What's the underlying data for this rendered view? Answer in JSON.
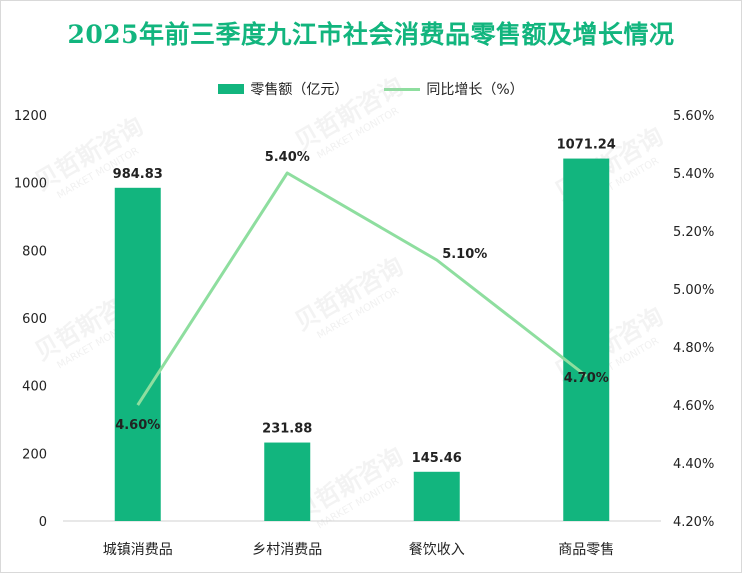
{
  "chart_data": {
    "type": "bar+line",
    "title": "2025年前三季度九江市社会消费品零售额及增长情况",
    "categories": [
      "城镇消费品",
      "乡村消费品",
      "餐饮收入",
      "商品零售"
    ],
    "series": [
      {
        "name": "零售额（亿元）",
        "type": "bar",
        "axis": "left",
        "values": [
          984.83,
          231.88,
          145.46,
          1071.24
        ],
        "labels": [
          "984.83",
          "231.88",
          "145.46",
          "1071.24"
        ]
      },
      {
        "name": "同比增长（%）",
        "type": "line",
        "axis": "right",
        "values": [
          4.6,
          5.4,
          5.1,
          4.7
        ],
        "labels": [
          "4.60%",
          "5.40%",
          "5.10%",
          "4.70%"
        ]
      }
    ],
    "y_left": {
      "min": 0,
      "max": 1200,
      "step": 200,
      "ticks": [
        "0",
        "200",
        "400",
        "600",
        "800",
        "1000",
        "1200"
      ]
    },
    "y_right": {
      "min": 4.2,
      "max": 5.6,
      "step": 0.2,
      "ticks": [
        "4.20%",
        "4.40%",
        "4.60%",
        "4.80%",
        "5.00%",
        "5.20%",
        "5.40%",
        "5.60%"
      ]
    },
    "legend_position": "top",
    "grid": false,
    "colors": {
      "bar": "#12b57e",
      "line": "#8ede9f",
      "title": "#12b57e"
    }
  },
  "watermark": {
    "text": "贝哲斯咨询",
    "subtext": "MARKET MONITOR"
  }
}
